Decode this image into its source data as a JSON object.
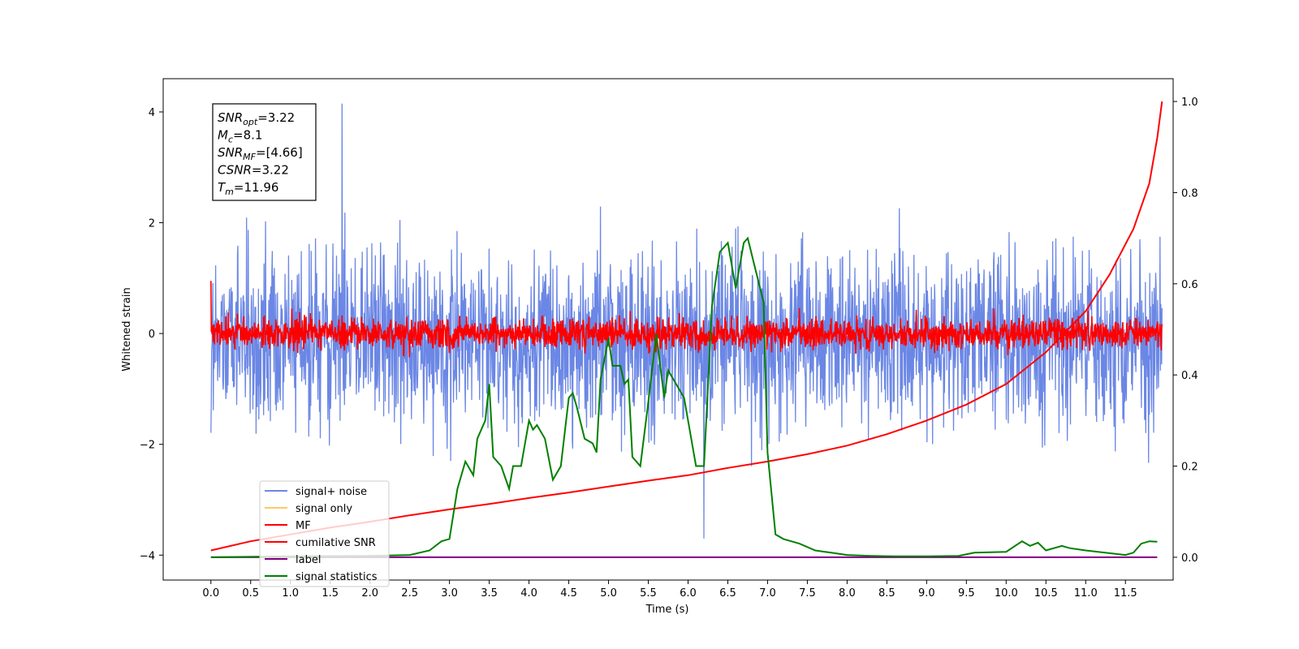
{
  "chart_data": {
    "type": "line",
    "xlabel": "Time (s)",
    "ylabel": "Whitened strain",
    "xlim": [
      -0.6,
      12.1
    ],
    "ylim": [
      -4.45,
      4.6
    ],
    "y2lim": [
      -0.05,
      1.05
    ],
    "x_ticks": [
      "0.0",
      "0.5",
      "1.0",
      "1.5",
      "2.0",
      "2.5",
      "3.0",
      "3.5",
      "4.0",
      "4.5",
      "5.0",
      "5.5",
      "6.0",
      "6.5",
      "7.0",
      "7.5",
      "8.0",
      "8.5",
      "9.0",
      "9.5",
      "10.0",
      "10.5",
      "11.0",
      "11.5"
    ],
    "y_ticks": [
      "4",
      "2",
      "0",
      "−2",
      "−4"
    ],
    "y2_ticks": [
      "1.0",
      "0.8",
      "0.6",
      "0.4",
      "0.2",
      "0.0"
    ],
    "legend_position": "lower-left",
    "series": [
      {
        "name": "signal+ noise",
        "axis": "left",
        "color": "#6b87e5",
        "x_range": [
          0,
          11.96
        ],
        "description": "dense noise, mostly within -2.5 to 2.5, peaks ~4.2 at 1.65 s",
        "center": -0.1,
        "envelope": 1.3,
        "max": 4.15,
        "min": -3.7
      },
      {
        "name": "signal only",
        "axis": "left",
        "color": "#ffc766",
        "x_range": [
          0,
          11.96
        ],
        "values_note": "near zero, hidden beneath MF"
      },
      {
        "name": "MF",
        "axis": "left",
        "color": "#ff0000",
        "x_range": [
          0,
          11.96
        ],
        "center": 0.0,
        "envelope": 0.35,
        "max": 0.95,
        "min": -0.5
      },
      {
        "name": "cumilative SNR",
        "axis": "right",
        "color": "#ff0000",
        "x": [
          0.0,
          0.5,
          1.0,
          1.5,
          2.0,
          2.5,
          3.0,
          3.5,
          4.0,
          4.5,
          5.0,
          5.5,
          6.0,
          6.5,
          7.0,
          7.5,
          8.0,
          8.5,
          9.0,
          9.5,
          10.0,
          10.5,
          11.0,
          11.3,
          11.6,
          11.8,
          11.9,
          11.96
        ],
        "values": [
          0.015,
          0.035,
          0.05,
          0.065,
          0.078,
          0.092,
          0.105,
          0.117,
          0.13,
          0.142,
          0.155,
          0.168,
          0.18,
          0.196,
          0.21,
          0.226,
          0.245,
          0.27,
          0.3,
          0.335,
          0.38,
          0.45,
          0.54,
          0.62,
          0.72,
          0.82,
          0.92,
          1.0
        ]
      },
      {
        "name": "label",
        "axis": "right",
        "color": "#800080",
        "x": [
          0.0,
          11.9
        ],
        "values": [
          0.0,
          0.0
        ]
      },
      {
        "name": "signal statistics",
        "axis": "right",
        "color": "#008000",
        "x": [
          0.0,
          1.0,
          2.0,
          2.5,
          2.75,
          2.9,
          3.0,
          3.1,
          3.2,
          3.3,
          3.35,
          3.45,
          3.5,
          3.55,
          3.65,
          3.75,
          3.8,
          3.9,
          3.95,
          4.0,
          4.05,
          4.1,
          4.2,
          4.3,
          4.4,
          4.5,
          4.55,
          4.6,
          4.7,
          4.8,
          4.85,
          4.9,
          5.0,
          5.05,
          5.15,
          5.2,
          5.25,
          5.3,
          5.4,
          5.5,
          5.6,
          5.7,
          5.75,
          5.85,
          5.95,
          6.05,
          6.1,
          6.2,
          6.3,
          6.4,
          6.5,
          6.6,
          6.7,
          6.75,
          6.85,
          6.95,
          7.0,
          7.1,
          7.2,
          7.4,
          7.6,
          7.8,
          8.0,
          8.3,
          8.6,
          9.0,
          9.4,
          9.6,
          10.0,
          10.2,
          10.3,
          10.4,
          10.5,
          10.7,
          10.8,
          11.0,
          11.5,
          11.6,
          11.7,
          11.8,
          11.9
        ],
        "values": [
          0.0,
          0.002,
          0.003,
          0.005,
          0.015,
          0.035,
          0.04,
          0.15,
          0.21,
          0.18,
          0.26,
          0.3,
          0.38,
          0.22,
          0.2,
          0.15,
          0.2,
          0.2,
          0.25,
          0.3,
          0.28,
          0.29,
          0.26,
          0.17,
          0.2,
          0.35,
          0.36,
          0.33,
          0.26,
          0.25,
          0.23,
          0.39,
          0.48,
          0.42,
          0.42,
          0.38,
          0.39,
          0.22,
          0.2,
          0.34,
          0.49,
          0.35,
          0.41,
          0.38,
          0.35,
          0.25,
          0.2,
          0.2,
          0.55,
          0.67,
          0.69,
          0.59,
          0.69,
          0.7,
          0.63,
          0.56,
          0.23,
          0.05,
          0.04,
          0.03,
          0.015,
          0.01,
          0.005,
          0.003,
          0.002,
          0.002,
          0.003,
          0.01,
          0.012,
          0.035,
          0.025,
          0.032,
          0.015,
          0.025,
          0.02,
          0.015,
          0.005,
          0.01,
          0.03,
          0.035,
          0.034
        ]
      }
    ],
    "annotation": {
      "lines": [
        {
          "main": "SNR",
          "sub": "opt",
          "rest": "=3.22"
        },
        {
          "main": "M",
          "sub": "c",
          "rest": "=8.1"
        },
        {
          "main": "SNR",
          "sub": "MF",
          "rest": "=[4.66]"
        },
        {
          "main": "CSNR",
          "sub": "",
          "rest": "=3.22"
        },
        {
          "main": "T",
          "sub": "m",
          "rest": "=11.96"
        }
      ]
    }
  }
}
